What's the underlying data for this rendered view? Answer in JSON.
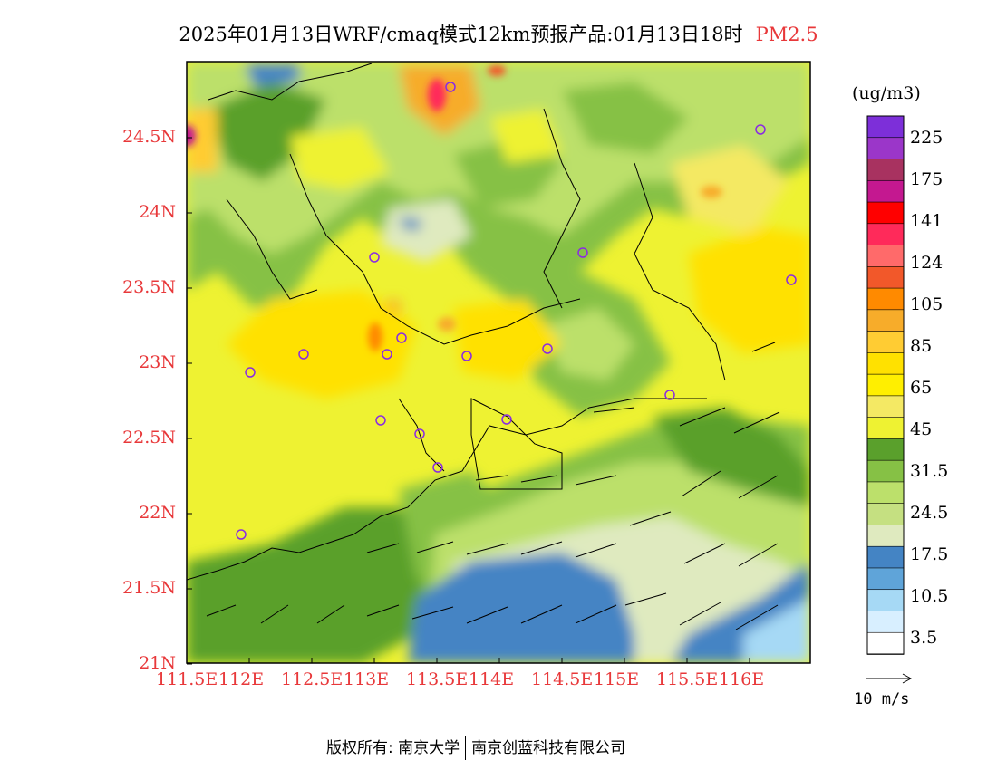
{
  "header": {
    "title": "2025年01月13日WRF/cmaq模式12km预报产品:01月13日18时",
    "pollutant": "PM2.5"
  },
  "map": {
    "lon_ticks": [
      "111.5E",
      "112E",
      "112.5E",
      "113E",
      "113.5E",
      "114E",
      "114.5E",
      "115E",
      "115.5E",
      "116E"
    ],
    "lat_ticks": [
      "24.5N",
      "24N",
      "23.5N",
      "23N",
      "22.5N",
      "22N",
      "21.5N",
      "21N"
    ]
  },
  "colorbar": {
    "units": "(ug/m3)",
    "labels": [
      "225",
      "175",
      "141",
      "124",
      "105",
      "85",
      "65",
      "45",
      "31.5",
      "24.5",
      "17.5",
      "10.5",
      "3.5"
    ],
    "colors": [
      "#7d2fd9",
      "#9b36c9",
      "#a83260",
      "#c41890",
      "#ff0000",
      "#ff2a5a",
      "#ff6a6a",
      "#f2582a",
      "#ff8a00",
      "#f7ac2a",
      "#ffcc33",
      "#ffe100",
      "#ffef00",
      "#f4e964",
      "#eef232",
      "#5aa02c",
      "#86c145",
      "#bce06b",
      "#c5e081",
      "#dfeabf",
      "#4484c4",
      "#5fa4d9",
      "#a6d9f5",
      "#d8efff",
      "#ffffff"
    ]
  },
  "wind_reference": {
    "label": "10 m/s"
  },
  "footer": {
    "copyright_prefix": "版权所有:",
    "owner1": "南京大学",
    "owner2": "南京创蓝科技有限公司"
  }
}
